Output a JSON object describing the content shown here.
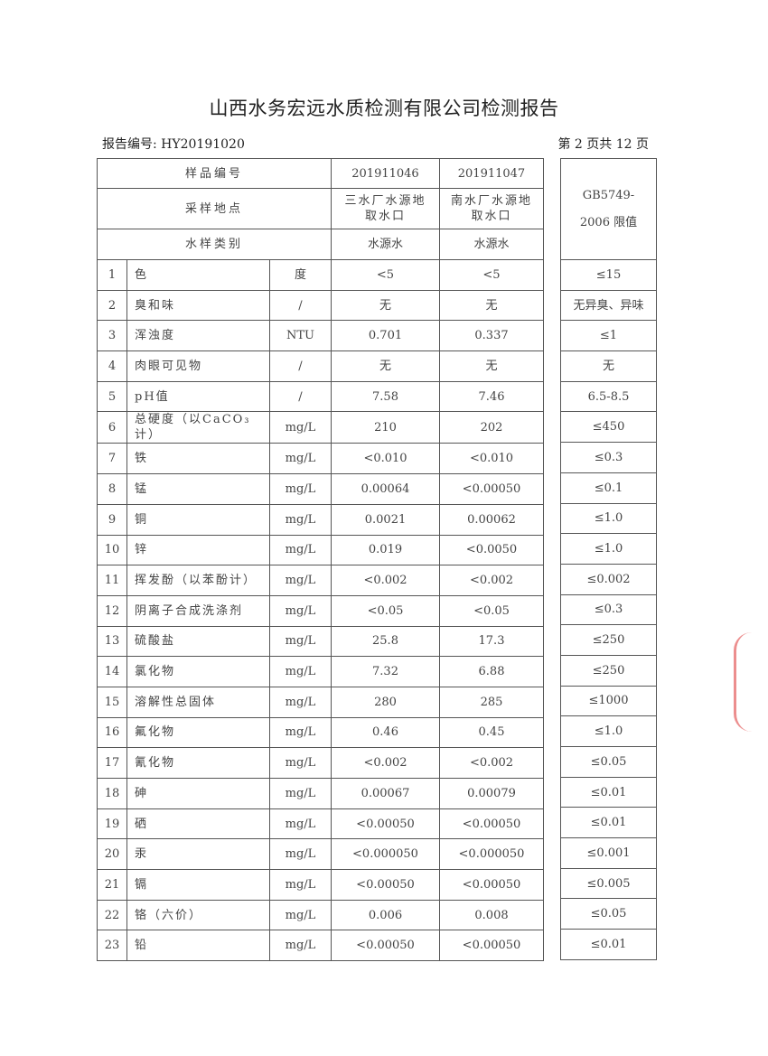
{
  "title": "山西水务宏远水质检测有限公司检测报告",
  "report_no": "报告编号: HY20191020",
  "page_info": "第 2 页共 12 页",
  "header": {
    "sample_no_label": "样品编号",
    "sample_nos": [
      "201911046",
      "201911047"
    ],
    "location_label": "采样地点",
    "locations": [
      "三水厂水源地取水口",
      "南水厂水源地取水口"
    ],
    "type_label": "水样类别",
    "types": [
      "水源水",
      "水源水"
    ],
    "standard_label": "GB5749-2006 限值"
  },
  "rows": [
    {
      "no": "1",
      "item": "色",
      "unit": "度",
      "v1": "<5",
      "v2": "<5",
      "limit": "≤15"
    },
    {
      "no": "2",
      "item": "臭和味",
      "unit": "/",
      "v1": "无",
      "v2": "无",
      "limit": "无异臭、异味"
    },
    {
      "no": "3",
      "item": "浑浊度",
      "unit": "NTU",
      "v1": "0.701",
      "v2": "0.337",
      "limit": "≤1"
    },
    {
      "no": "4",
      "item": "肉眼可见物",
      "unit": "/",
      "v1": "无",
      "v2": "无",
      "limit": "无"
    },
    {
      "no": "5",
      "item": "pH值",
      "unit": "/",
      "v1": "7.58",
      "v2": "7.46",
      "limit": "6.5-8.5"
    },
    {
      "no": "6",
      "item": "总硬度（以CaCO₃计）",
      "unit": "mg/L",
      "v1": "210",
      "v2": "202",
      "limit": "≤450"
    },
    {
      "no": "7",
      "item": "铁",
      "unit": "mg/L",
      "v1": "<0.010",
      "v2": "<0.010",
      "limit": "≤0.3"
    },
    {
      "no": "8",
      "item": "锰",
      "unit": "mg/L",
      "v1": "0.00064",
      "v2": "<0.00050",
      "limit": "≤0.1"
    },
    {
      "no": "9",
      "item": "铜",
      "unit": "mg/L",
      "v1": "0.0021",
      "v2": "0.00062",
      "limit": "≤1.0"
    },
    {
      "no": "10",
      "item": "锌",
      "unit": "mg/L",
      "v1": "0.019",
      "v2": "<0.0050",
      "limit": "≤1.0"
    },
    {
      "no": "11",
      "item": "挥发酚（以苯酚计）",
      "unit": "mg/L",
      "v1": "<0.002",
      "v2": "<0.002",
      "limit": "≤0.002"
    },
    {
      "no": "12",
      "item": "阴离子合成洗涤剂",
      "unit": "mg/L",
      "v1": "<0.05",
      "v2": "<0.05",
      "limit": "≤0.3"
    },
    {
      "no": "13",
      "item": "硫酸盐",
      "unit": "mg/L",
      "v1": "25.8",
      "v2": "17.3",
      "limit": "≤250"
    },
    {
      "no": "14",
      "item": "氯化物",
      "unit": "mg/L",
      "v1": "7.32",
      "v2": "6.88",
      "limit": "≤250"
    },
    {
      "no": "15",
      "item": "溶解性总固体",
      "unit": "mg/L",
      "v1": "280",
      "v2": "285",
      "limit": "≤1000"
    },
    {
      "no": "16",
      "item": "氟化物",
      "unit": "mg/L",
      "v1": "0.46",
      "v2": "0.45",
      "limit": "≤1.0"
    },
    {
      "no": "17",
      "item": "氰化物",
      "unit": "mg/L",
      "v1": "<0.002",
      "v2": "<0.002",
      "limit": "≤0.05"
    },
    {
      "no": "18",
      "item": "砷",
      "unit": "mg/L",
      "v1": "0.00067",
      "v2": "0.00079",
      "limit": "≤0.01"
    },
    {
      "no": "19",
      "item": "硒",
      "unit": "mg/L",
      "v1": "<0.00050",
      "v2": "<0.00050",
      "limit": "≤0.01"
    },
    {
      "no": "20",
      "item": "汞",
      "unit": "mg/L",
      "v1": "<0.000050",
      "v2": "<0.000050",
      "limit": "≤0.001"
    },
    {
      "no": "21",
      "item": "镉",
      "unit": "mg/L",
      "v1": "<0.00050",
      "v2": "<0.00050",
      "limit": "≤0.005"
    },
    {
      "no": "22",
      "item": "铬（六价）",
      "unit": "mg/L",
      "v1": "0.006",
      "v2": "0.008",
      "limit": "≤0.05"
    },
    {
      "no": "23",
      "item": "铅",
      "unit": "mg/L",
      "v1": "<0.00050",
      "v2": "<0.00050",
      "limit": "≤0.01"
    }
  ]
}
